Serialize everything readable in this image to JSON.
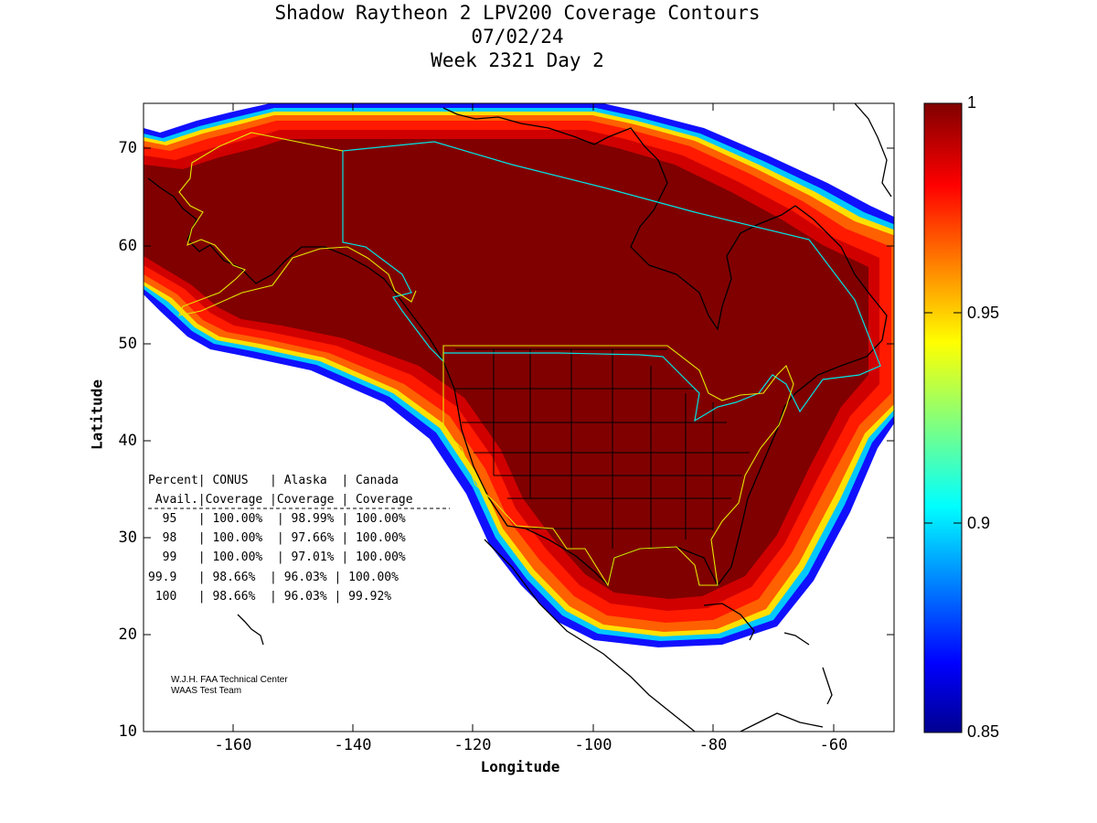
{
  "title": {
    "line1": "Shadow Raytheon 2 LPV200 Coverage Contours",
    "line2": "07/02/24",
    "line3": "Week 2321 Day 2"
  },
  "axes": {
    "xlabel": "Longitude",
    "ylabel": "Latitude",
    "xticks": [
      "-160",
      "-140",
      "-120",
      "-100",
      "-80",
      "-60"
    ],
    "yticks": [
      "70",
      "60",
      "50",
      "40",
      "30",
      "20",
      "10"
    ],
    "xlim": [
      -175,
      -50
    ],
    "ylim": [
      10,
      75
    ]
  },
  "colorbar": {
    "ticks": [
      "1",
      "0.95",
      "0.9",
      "0.85"
    ],
    "range": [
      0.85,
      1
    ],
    "colormap": "jet"
  },
  "colors": {
    "full_coverage": "#800000",
    "state_borders": "#000000",
    "canada_border": "#00e5e5",
    "alaska_conus_border": "#e5e500"
  },
  "stats_table": [
    "Percent| CONUS   | Alaska  | Canada",
    " Avail.|Coverage |Coverage | Coverage",
    "  95   | 100.00%  | 98.99% | 100.00%",
    "  98   | 100.00%  | 97.66% | 100.00%",
    "  99   | 100.00%  | 97.01% | 100.00%",
    "99.9   | 98.66%  | 96.03% | 100.00%",
    " 100   | 98.66%  | 96.03% | 99.92%"
  ],
  "credits": {
    "line1": "W.J.H. FAA Technical Center",
    "line2": "WAAS Test Team"
  }
}
